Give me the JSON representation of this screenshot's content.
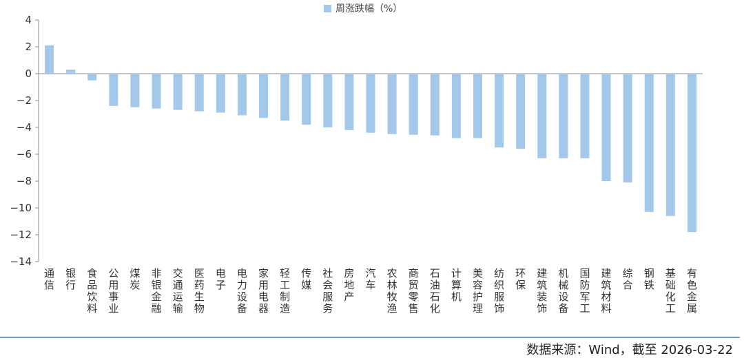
{
  "chart_data": {
    "type": "bar",
    "title": "",
    "legend": {
      "label": "周涨跌幅（%）",
      "position": "top-center"
    },
    "categories": [
      "通信",
      "银行",
      "食品饮料",
      "公用事业",
      "煤炭",
      "非银金融",
      "交通运输",
      "医药生物",
      "电子",
      "电力设备",
      "家用电器",
      "轻工制造",
      "传媒",
      "社会服务",
      "房地产",
      "汽车",
      "农林牧渔",
      "商贸零售",
      "石油石化",
      "计算机",
      "美容护理",
      "纺织服饰",
      "环保",
      "建筑装饰",
      "机械设备",
      "国防军工",
      "建筑材料",
      "综合",
      "钢铁",
      "基础化工",
      "有色金属"
    ],
    "series": [
      {
        "name": "周涨跌幅（%）",
        "values": [
          2.1,
          0.3,
          -0.5,
          -2.4,
          -2.5,
          -2.6,
          -2.7,
          -2.8,
          -2.9,
          -3.1,
          -3.3,
          -3.5,
          -3.8,
          -4.0,
          -4.2,
          -4.4,
          -4.5,
          -4.55,
          -4.6,
          -4.8,
          -4.8,
          -5.5,
          -5.6,
          -6.3,
          -6.3,
          -6.3,
          -8.0,
          -8.1,
          -10.3,
          -10.6,
          -11.8
        ]
      }
    ],
    "ylim": [
      -14,
      4
    ],
    "yticks": [
      4,
      2,
      0,
      -2,
      -4,
      -6,
      -8,
      -10,
      -12,
      -14
    ],
    "xlabel": "",
    "ylabel": "",
    "bar_color": "#a4c8ea",
    "grid": false
  },
  "footer": {
    "source": "数据来源：Wind，截至 2026-03-22"
  }
}
